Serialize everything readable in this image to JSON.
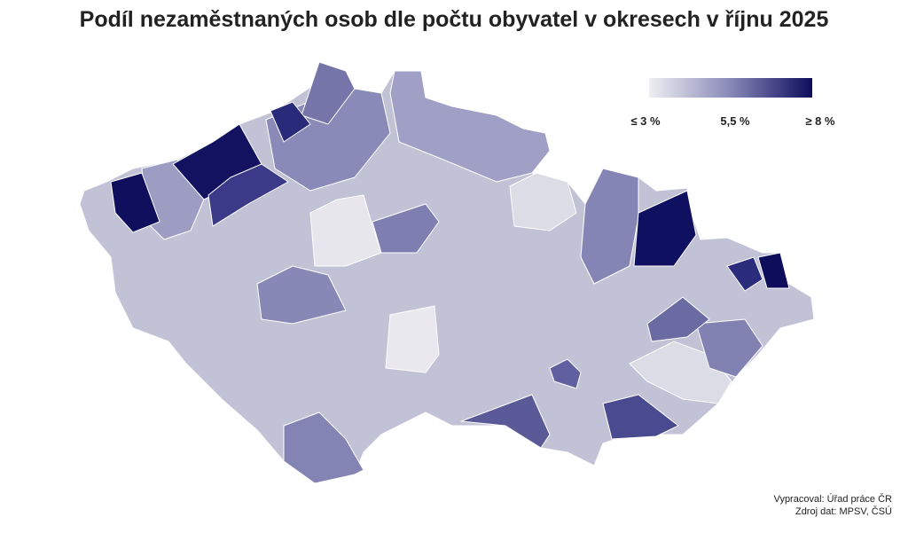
{
  "header": {
    "title": "Podíl nezaměstnaných osob dle počtu obyvatel v okresech v říjnu 2025"
  },
  "legend": {
    "labels": [
      "≤ 3 %",
      "5,5 %",
      "≥ 8 %"
    ]
  },
  "footer": {
    "lines": [
      "Vypracoval: Úřad práce ČR",
      "Zdroj dat: MPSV, ČSÚ"
    ]
  }
}
